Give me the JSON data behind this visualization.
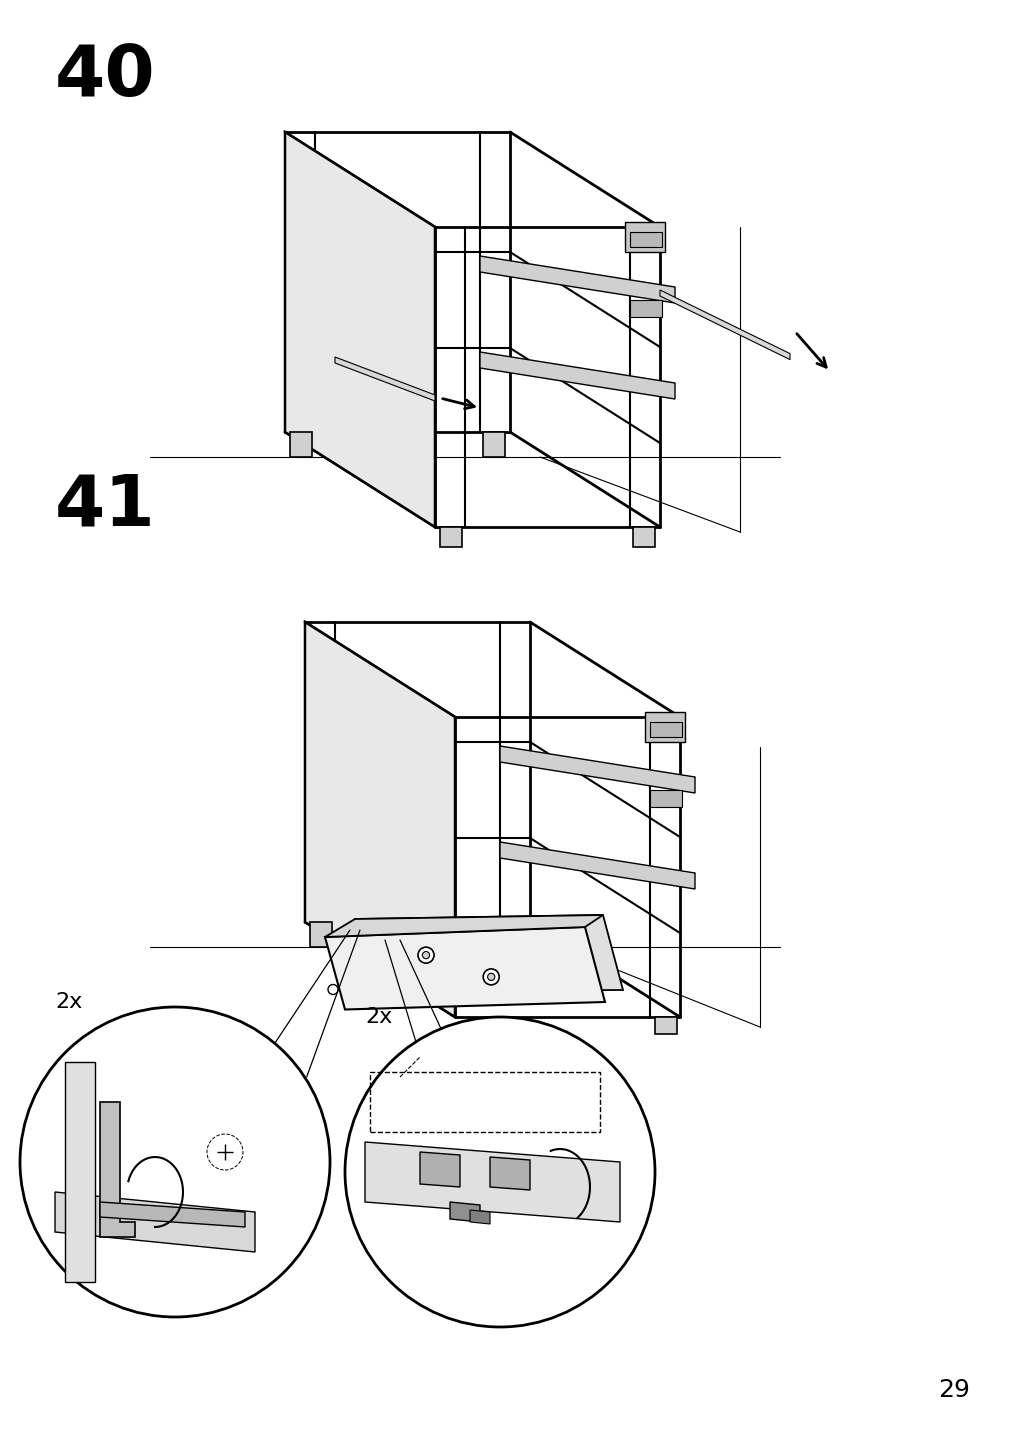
{
  "page_number": "29",
  "background_color": "#ffffff",
  "line_color": "#000000",
  "figure_width": 10.12,
  "figure_height": 14.32,
  "dpi": 100
}
